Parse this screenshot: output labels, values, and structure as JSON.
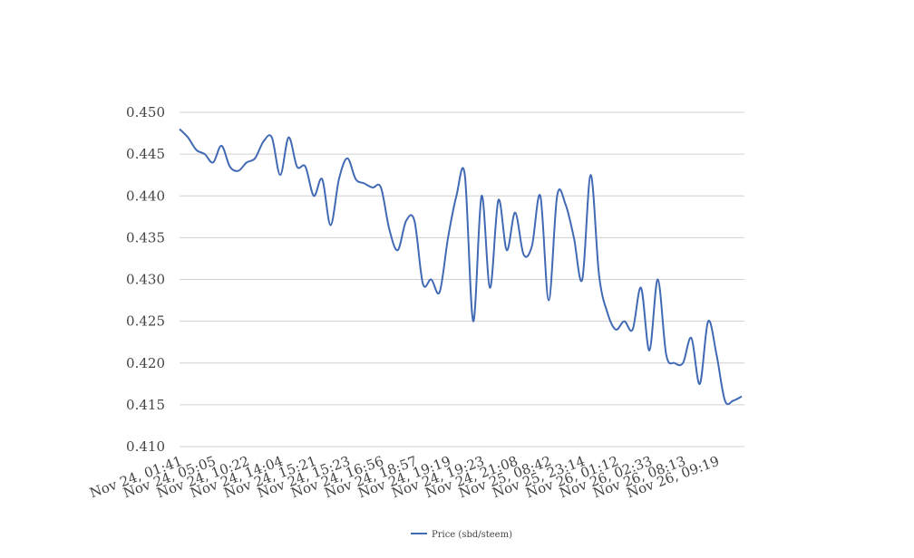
{
  "chart_data": {
    "type": "line",
    "categories": [
      "Nov 24, 01:41",
      null,
      null,
      null,
      "Nov 24, 05:05",
      null,
      null,
      null,
      "Nov 24, 10:22",
      null,
      null,
      null,
      "Nov 24, 14:04",
      null,
      null,
      null,
      "Nov 24, 15:21",
      null,
      null,
      null,
      "Nov 24, 15:23",
      null,
      null,
      null,
      "Nov 24, 16:56",
      null,
      null,
      null,
      "Nov 24, 18:57",
      null,
      null,
      null,
      "Nov 24, 19:19",
      null,
      null,
      null,
      "Nov 24, 19:23",
      null,
      null,
      null,
      "Nov 24, 21:08",
      null,
      null,
      null,
      "Nov 25, 08:42",
      null,
      null,
      null,
      "Nov 25, 23:14",
      null,
      null,
      null,
      "Nov 26, 01:12",
      null,
      null,
      null,
      "Nov 26, 02:33",
      null,
      null,
      null,
      "Nov 26, 08:13",
      null,
      null,
      null,
      "Nov 26, 09:19",
      null,
      null,
      null
    ],
    "series": [
      {
        "name": "Price (sbd/steem)",
        "color": "#4169b4",
        "values": [
          0.448,
          0.447,
          0.4455,
          0.445,
          0.444,
          0.446,
          0.4435,
          0.443,
          0.444,
          0.4445,
          0.4465,
          0.447,
          0.4425,
          0.447,
          0.4435,
          0.4435,
          0.44,
          0.442,
          0.4365,
          0.442,
          0.4445,
          0.442,
          0.4415,
          0.441,
          0.441,
          0.436,
          0.4335,
          0.437,
          0.437,
          0.4295,
          0.43,
          0.4285,
          0.435,
          0.44,
          0.4425,
          0.425,
          0.44,
          0.429,
          0.4395,
          0.4335,
          0.438,
          0.433,
          0.434,
          0.44,
          0.4275,
          0.44,
          0.439,
          0.435,
          0.43,
          0.4425,
          0.4305,
          0.426,
          0.424,
          0.425,
          0.424,
          0.429,
          0.4215,
          0.43,
          0.421,
          0.42,
          0.42,
          0.423,
          0.4175,
          0.425,
          0.421,
          0.4155,
          0.4155,
          0.416
        ]
      }
    ],
    "ylim": [
      0.41,
      0.45
    ],
    "yticks": [
      {
        "value": 0.41,
        "label": "0.410"
      },
      0.415,
      {
        "value": 0.42,
        "label": "0.420"
      },
      0.425,
      {
        "value": 0.43,
        "label": "0.430"
      },
      0.435,
      {
        "value": 0.44,
        "label": "0.440"
      },
      0.445,
      {
        "value": 0.45,
        "label": "0.450"
      }
    ],
    "grid": true,
    "legend": "bottom"
  }
}
